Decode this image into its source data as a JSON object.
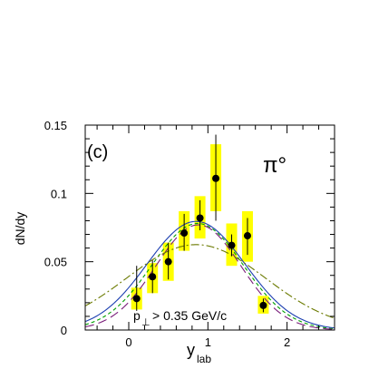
{
  "chart_data": {
    "type": "scatter",
    "panel_label": "(c)",
    "particle_label": "π°",
    "cut_label": {
      "prefix": "p",
      "subscript": "⊥",
      "suffix": "> 0.35 GeV/c"
    },
    "ylabel": "dN/dy",
    "xlabel": {
      "main": "y",
      "sub": "lab"
    },
    "xlim": [
      -0.55,
      2.6
    ],
    "ylim": [
      0,
      0.15
    ],
    "xticks": [
      {
        "value": 0,
        "label": "0"
      },
      {
        "value": 1,
        "label": "1"
      },
      {
        "value": 2,
        "label": "2"
      }
    ],
    "yticks": [
      {
        "value": 0,
        "label": "0"
      },
      {
        "value": 0.05,
        "label": "0.05"
      },
      {
        "value": 0.1,
        "label": "0.1"
      },
      {
        "value": 0.15,
        "label": "0.15"
      }
    ],
    "grid": false,
    "colors": {
      "points": "#000000",
      "systematic_band": "#ffff00",
      "curve_solid": "#1c3fb0",
      "curve_dashed_green": "#00a000",
      "curve_longdash": "#7a1d7a",
      "curve_dashdot": "#6b7a00"
    },
    "points": [
      {
        "x": 0.1,
        "y": 0.023,
        "stat_lo": 0.014,
        "stat_hi": 0.047,
        "sys_lo": 0.015,
        "sys_hi": 0.031
      },
      {
        "x": 0.3,
        "y": 0.039,
        "stat_lo": 0.027,
        "stat_hi": 0.051,
        "sys_lo": 0.027,
        "sys_hi": 0.049
      },
      {
        "x": 0.5,
        "y": 0.05,
        "stat_lo": 0.037,
        "stat_hi": 0.064,
        "sys_lo": 0.036,
        "sys_hi": 0.064
      },
      {
        "x": 0.7,
        "y": 0.071,
        "stat_lo": 0.058,
        "stat_hi": 0.085,
        "sys_lo": 0.058,
        "sys_hi": 0.087
      },
      {
        "x": 0.9,
        "y": 0.082,
        "stat_lo": 0.073,
        "stat_hi": 0.095,
        "sys_lo": 0.067,
        "sys_hi": 0.098
      },
      {
        "x": 1.1,
        "y": 0.111,
        "stat_lo": 0.08,
        "stat_hi": 0.143,
        "sys_lo": 0.087,
        "sys_hi": 0.136
      },
      {
        "x": 1.3,
        "y": 0.062,
        "stat_lo": 0.054,
        "stat_hi": 0.07,
        "sys_lo": 0.047,
        "sys_hi": 0.078
      },
      {
        "x": 1.5,
        "y": 0.069,
        "stat_lo": 0.055,
        "stat_hi": 0.082,
        "sys_lo": 0.05,
        "sys_hi": 0.087
      },
      {
        "x": 1.7,
        "y": 0.018,
        "stat_lo": 0.013,
        "stat_hi": 0.023,
        "sys_lo": 0.012,
        "sys_hi": 0.025
      }
    ],
    "curves": [
      {
        "style": "solid",
        "color_key": "curve_solid",
        "amplitude": 0.0795,
        "center": 0.85,
        "sigma": 0.62
      },
      {
        "style": "dashed",
        "color_key": "curve_dashed_green",
        "amplitude": 0.078,
        "center": 0.87,
        "sigma": 0.58
      },
      {
        "style": "longdash",
        "color_key": "curve_longdash",
        "amplitude": 0.077,
        "center": 0.88,
        "sigma": 0.54
      },
      {
        "style": "dashdot",
        "color_key": "curve_dashdot",
        "amplitude": 0.0625,
        "center": 0.85,
        "sigma": 0.88
      }
    ]
  }
}
